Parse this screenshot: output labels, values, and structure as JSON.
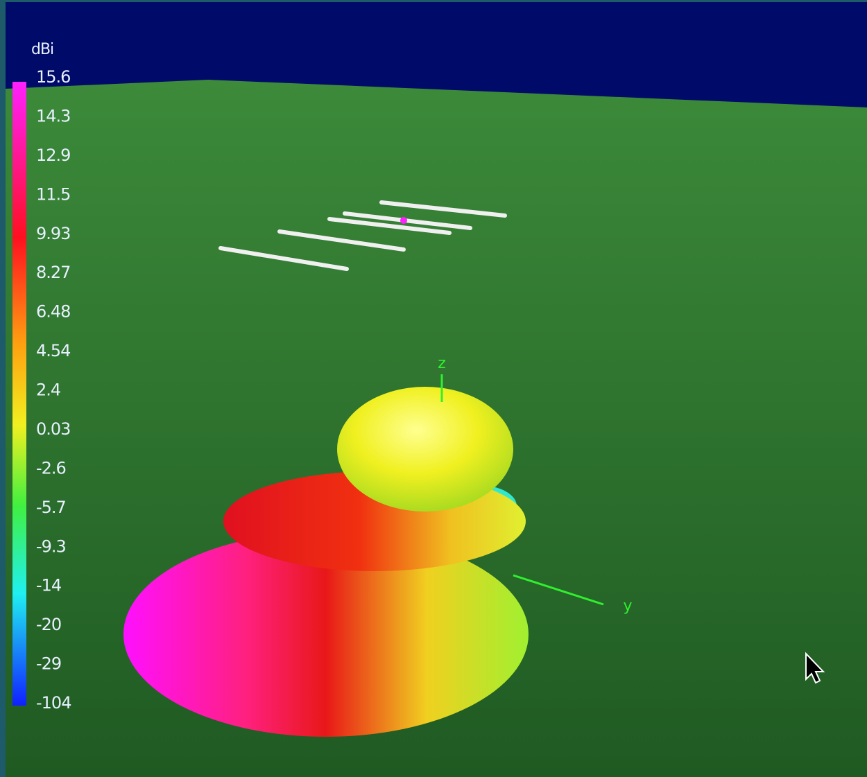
{
  "colorbar": {
    "unit": "dBi",
    "labels": [
      "15.6",
      "14.3",
      "12.9",
      "11.5",
      "9.93",
      "8.27",
      "6.48",
      "4.54",
      "2.4",
      "0.03",
      "-2.6",
      "-5.7",
      "-9.3",
      "-14",
      "-20",
      "-29",
      "-104"
    ]
  },
  "axes": {
    "z": "z",
    "y": "y"
  }
}
